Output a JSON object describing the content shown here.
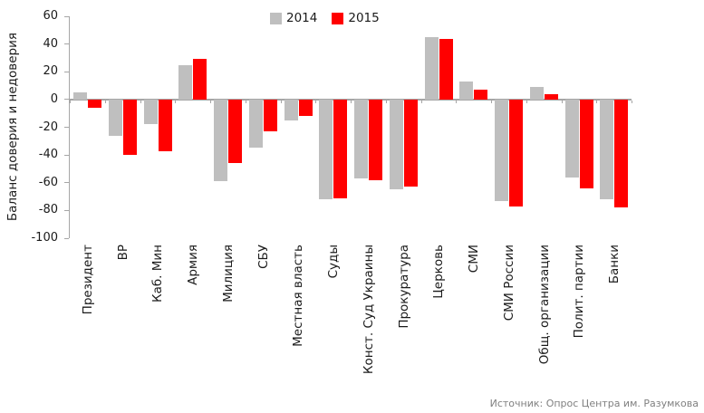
{
  "chart_data": {
    "type": "bar",
    "title": "",
    "y_axis_title": "Баланс доверия и недоверия",
    "categories": [
      "Президент",
      "ВР",
      "Каб. Мин",
      "Армия",
      "Милиция",
      "СБУ",
      "Местная власть",
      "Суды",
      "Конст. Суд Украины",
      "Прокуратура",
      "Церковь",
      "СМИ",
      "СМИ России",
      "Общ. организации",
      "Полит. партии",
      "Банки"
    ],
    "series": [
      {
        "name": "2014",
        "color": "#bfbfbf",
        "values": [
          5,
          -26,
          -18,
          25,
          -59,
          -35,
          -15,
          -72,
          -57,
          -65,
          45,
          13,
          -73,
          9,
          -56,
          -72
        ]
      },
      {
        "name": "2015",
        "color": "#ff0000",
        "values": [
          -6,
          -40,
          -37,
          29,
          -46,
          -23,
          -12,
          -71,
          -58,
          -63,
          44,
          7,
          -77,
          4,
          -64,
          -78
        ]
      }
    ],
    "ylim": [
      -100,
      60
    ],
    "y_ticks": [
      60,
      40,
      20,
      0,
      -20,
      -40,
      -60,
      -80,
      -100
    ],
    "grid": false,
    "legend_position": "top-center"
  },
  "footer": {
    "source": "Источник: Опрос Центра им. Разумкова"
  },
  "colors": {
    "axis": "#a6a6a6",
    "bar_2014": "#bfbfbf",
    "bar_2015": "#ff0000",
    "footer_text": "#808080"
  }
}
